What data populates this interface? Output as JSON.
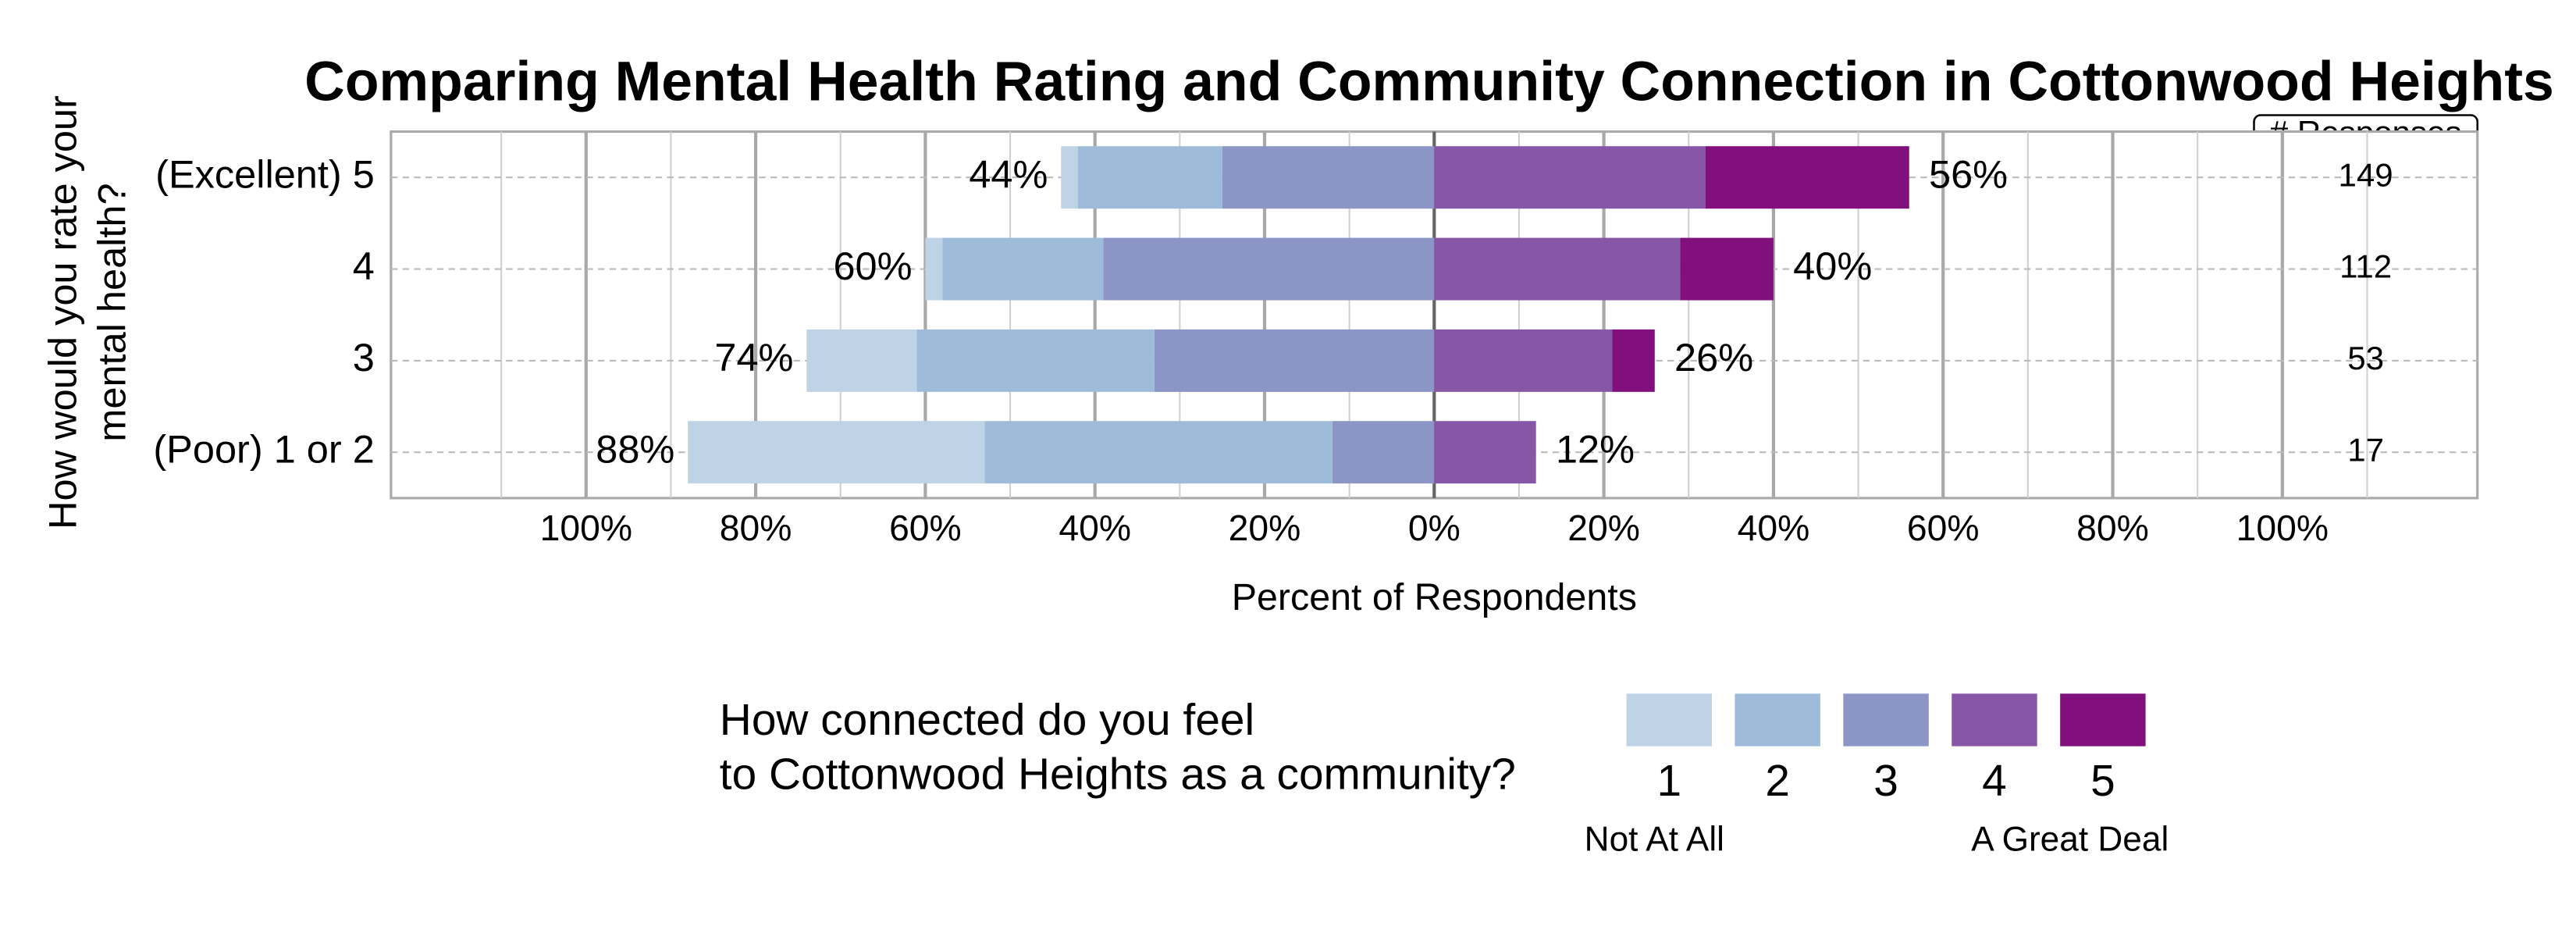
{
  "chart_data": {
    "type": "diverging_bar",
    "title": "Comparing Mental Health Rating and Community Connection in Cottonwood Heights",
    "y_label": [
      "How would you rate your",
      "mental health?"
    ],
    "x_label": "Percent of Respondents",
    "categories": [
      "(Excellent) 5",
      "4",
      "3",
      "(Poor) 1 or 2"
    ],
    "series": [
      {
        "name": "1",
        "color": "#bfd3e6",
        "side": "left",
        "values": [
          2,
          2,
          13,
          35
        ]
      },
      {
        "name": "2",
        "color": "#9ebcda",
        "side": "left",
        "values": [
          17,
          19,
          28,
          41
        ]
      },
      {
        "name": "3",
        "color": "#8c96c6",
        "side": "left",
        "values": [
          25,
          39,
          33,
          12
        ]
      },
      {
        "name": "4",
        "color": "#8856a7",
        "side": "right",
        "values": [
          32,
          29,
          21,
          12
        ]
      },
      {
        "name": "5",
        "color": "#810f7c",
        "side": "right",
        "values": [
          24,
          11,
          5,
          0
        ]
      }
    ],
    "left_totals": {
      "values": [
        44,
        60,
        74,
        88
      ],
      "value_labels": [
        "44%",
        "60%",
        "74%",
        "88%"
      ]
    },
    "right_totals": {
      "values": [
        56,
        40,
        26,
        12
      ],
      "value_labels": [
        "56%",
        "40%",
        "26%",
        "12%"
      ]
    },
    "responses": {
      "title": "# Responses",
      "values": [
        149,
        112,
        53,
        17
      ]
    },
    "xlim": [
      -123,
      123
    ],
    "xticks": [
      {
        "value": -100,
        "label": "100%"
      },
      {
        "value": -80,
        "label": "80%"
      },
      {
        "value": -60,
        "label": "60%"
      },
      {
        "value": -40,
        "label": "40%"
      },
      {
        "value": -20,
        "label": "20%"
      },
      {
        "value": 0,
        "label": "0%"
      },
      {
        "value": 20,
        "label": "20%"
      },
      {
        "value": 40,
        "label": "40%"
      },
      {
        "value": 60,
        "label": "60%"
      },
      {
        "value": 80,
        "label": "80%"
      },
      {
        "value": 100,
        "label": "100%"
      }
    ],
    "minor_xticks": [
      -110,
      -90,
      -70,
      -50,
      -30,
      -10,
      10,
      30,
      50,
      70,
      90,
      110
    ],
    "grid": true,
    "legend": {
      "title": [
        "How connected do you feel",
        "to Cottonwood Heights as a community?"
      ],
      "low_label": "Not At All",
      "high_label": "A Great Deal"
    }
  }
}
